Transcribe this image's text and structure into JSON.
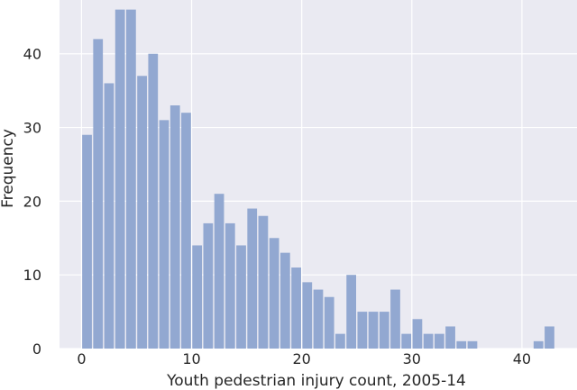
{
  "chart_data": {
    "type": "bar",
    "xlabel": "Youth pedestrian injury count, 2005-14",
    "ylabel": "Frequency",
    "xlim": [
      -2,
      45
    ],
    "ylim": [
      0,
      47.3
    ],
    "x_ticks": [
      0,
      10,
      20,
      30,
      40
    ],
    "y_ticks": [
      0,
      10,
      20,
      30,
      40
    ],
    "grid": true,
    "colors": {
      "bar": "#92a8d1",
      "background": "#eaeaf2",
      "grid": "#ffffff"
    },
    "bins": [
      0,
      1,
      2,
      3,
      4,
      5,
      6,
      7,
      8,
      9,
      10,
      11,
      12,
      13,
      14,
      15,
      16,
      17,
      18,
      19,
      20,
      21,
      22,
      23,
      24,
      25,
      26,
      27,
      28,
      29,
      30,
      31,
      32,
      33,
      34,
      35,
      36,
      37,
      38,
      39,
      40,
      41,
      42
    ],
    "values": [
      29,
      42,
      36,
      46,
      46,
      37,
      40,
      31,
      33,
      32,
      14,
      17,
      21,
      17,
      14,
      19,
      18,
      15,
      13,
      11,
      9,
      8,
      7,
      2,
      10,
      5,
      5,
      5,
      8,
      2,
      4,
      2,
      2,
      3,
      1,
      1,
      0,
      0,
      0,
      0,
      0,
      1,
      3
    ]
  }
}
